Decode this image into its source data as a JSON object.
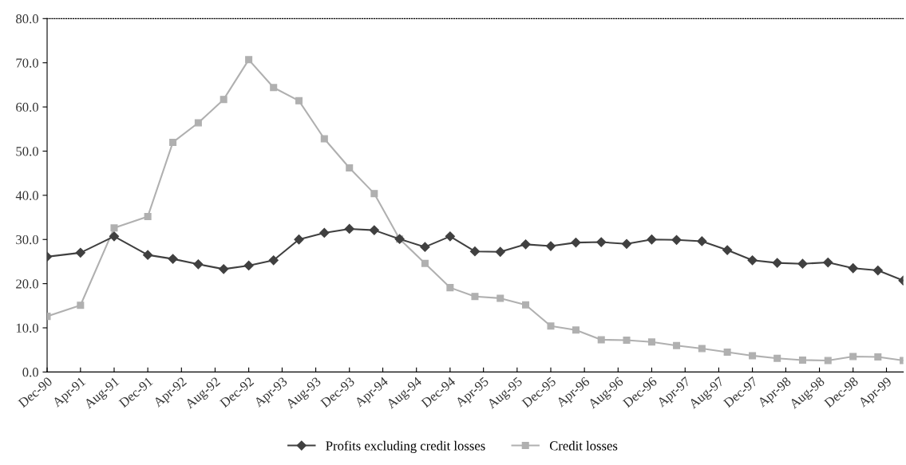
{
  "chart_data": {
    "type": "line",
    "x": [
      "1990-12",
      "1991-04",
      "1991-08",
      "1991-12",
      "1992-03",
      "1992-06",
      "1992-09",
      "1992-12",
      "1993-03",
      "1993-06",
      "1993-09",
      "1993-12",
      "1994-03",
      "1994-06",
      "1994-09",
      "1994-12",
      "1995-03",
      "1995-06",
      "1995-09",
      "1995-12",
      "1996-03",
      "1996-06",
      "1996-09",
      "1996-12",
      "1997-03",
      "1997-06",
      "1997-09",
      "1997-12",
      "1998-03",
      "1998-06",
      "1998-09",
      "1998-12",
      "1999-03",
      "1999-06"
    ],
    "series": [
      {
        "name": "Profits excluding credit losses",
        "color": "#404040",
        "marker": "diamond",
        "values": [
          26.1,
          27.0,
          30.7,
          26.5,
          25.6,
          24.4,
          23.3,
          24.1,
          25.3,
          30.0,
          31.5,
          32.4,
          32.1,
          30.1,
          28.3,
          30.7,
          27.3,
          27.2,
          28.9,
          28.5,
          29.3,
          29.4,
          29.0,
          30.0,
          29.9,
          29.6,
          27.6,
          25.3,
          24.7,
          24.5,
          24.8,
          23.5,
          23.0,
          20.7
        ]
      },
      {
        "name": "Credit losses",
        "color": "#b0b0b0",
        "marker": "square",
        "values": [
          12.6,
          15.1,
          32.6,
          35.2,
          52.0,
          56.4,
          61.7,
          70.7,
          64.4,
          61.4,
          52.8,
          46.2,
          40.4,
          30.1,
          24.6,
          19.1,
          17.1,
          16.7,
          15.2,
          10.4,
          9.5,
          7.3,
          7.2,
          6.8,
          6.0,
          5.3,
          4.5,
          3.7,
          3.1,
          2.7,
          2.6,
          3.5,
          3.4,
          2.6
        ]
      }
    ],
    "xlim": [
      "1990-12",
      "1999-06"
    ],
    "xticks": [
      {
        "value": "1990-12",
        "label": "Dec-90"
      },
      {
        "value": "1991-04",
        "label": "Apr-91"
      },
      {
        "value": "1991-08",
        "label": "Aug-91"
      },
      {
        "value": "1991-12",
        "label": "Dec-91"
      },
      {
        "value": "1992-04",
        "label": "Apr-92"
      },
      {
        "value": "1992-08",
        "label": "Aug-92"
      },
      {
        "value": "1992-12",
        "label": "Dec-92"
      },
      {
        "value": "1993-04",
        "label": "Apr-93"
      },
      {
        "value": "1993-08",
        "label": "Aug-93"
      },
      {
        "value": "1993-12",
        "label": "Dec-93"
      },
      {
        "value": "1994-04",
        "label": "Apr-94"
      },
      {
        "value": "1994-08",
        "label": "Aug-94"
      },
      {
        "value": "1994-12",
        "label": "Dec-94"
      },
      {
        "value": "1995-04",
        "label": "Apr-95"
      },
      {
        "value": "1995-08",
        "label": "Aug-95"
      },
      {
        "value": "1995-12",
        "label": "Dec-95"
      },
      {
        "value": "1996-04",
        "label": "Apr-96"
      },
      {
        "value": "1996-08",
        "label": "Aug-96"
      },
      {
        "value": "1996-12",
        "label": "Dec-96"
      },
      {
        "value": "1997-04",
        "label": "Apr-97"
      },
      {
        "value": "1997-08",
        "label": "Aug-97"
      },
      {
        "value": "1997-12",
        "label": "Dec-97"
      },
      {
        "value": "1998-04",
        "label": "Apr-98"
      },
      {
        "value": "1998-08",
        "label": "Aug-98"
      },
      {
        "value": "1998-12",
        "label": "Dec-98"
      },
      {
        "value": "1999-04",
        "label": "Apr-99"
      }
    ],
    "ylim": [
      0,
      80
    ],
    "yticks": [
      {
        "value": 0,
        "label": "0.0"
      },
      {
        "value": 10,
        "label": "10.0"
      },
      {
        "value": 20,
        "label": "20.0"
      },
      {
        "value": 30,
        "label": "30.0"
      },
      {
        "value": 40,
        "label": "40.0"
      },
      {
        "value": 50,
        "label": "50.0"
      },
      {
        "value": 60,
        "label": "60.0"
      },
      {
        "value": 70,
        "label": "70.0"
      },
      {
        "value": 80,
        "label": "80.0"
      }
    ],
    "legend": "bottom",
    "grid": false,
    "line_style": "solid"
  }
}
